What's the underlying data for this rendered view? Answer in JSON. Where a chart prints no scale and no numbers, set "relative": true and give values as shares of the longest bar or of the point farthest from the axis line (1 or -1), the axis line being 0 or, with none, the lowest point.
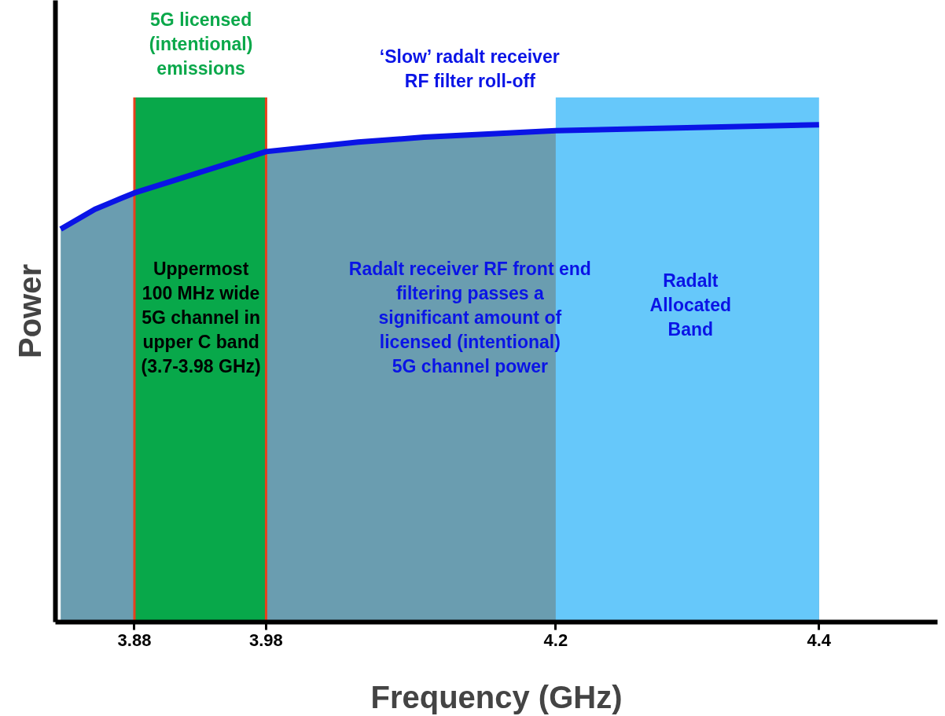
{
  "chart_data": {
    "type": "area",
    "relative": true,
    "xlabel": "Frequency (GHz)",
    "ylabel": "Power",
    "x": [
      3.824,
      3.85,
      3.87,
      3.88,
      3.98,
      4.05,
      4.1,
      4.2,
      4.4
    ],
    "series": [
      {
        "color": "#0a14e6",
        "values": [
          0.79,
          0.83,
          0.852,
          0.863,
          0.946,
          0.965,
          0.975,
          0.988,
          1.0
        ]
      }
    ],
    "xlim": [
      3.82,
      4.49
    ],
    "xticks": [
      3.88,
      3.98,
      4.2,
      4.4
    ],
    "tick_labels": "x",
    "grid": false,
    "bands": [
      {
        "axis": "x",
        "from": 3.88,
        "to": 3.98,
        "color": "#08a84a"
      },
      {
        "axis": "x",
        "from": 4.2,
        "to": 4.4,
        "color": "#66c8fa"
      }
    ],
    "ref_lines": [
      {
        "axis": "x",
        "value": 3.88,
        "color": "#e8401c"
      },
      {
        "axis": "x",
        "value": 3.98,
        "color": "#e8401c"
      }
    ],
    "annotations": [
      "5G licensed\n(intentional)\nemissions",
      "‘Slow’ radalt receiver\nRF filter roll-off",
      "Uppermost\n100 MHz wide\n5G channel in\nupper C band\n(3.7-3.98 GHz)",
      "Radalt receiver RF front end\nfiltering passes a\nsignificant amount of\nlicensed (intentional)\n5G channel power",
      "Radalt\nAllocated\nBand"
    ]
  }
}
